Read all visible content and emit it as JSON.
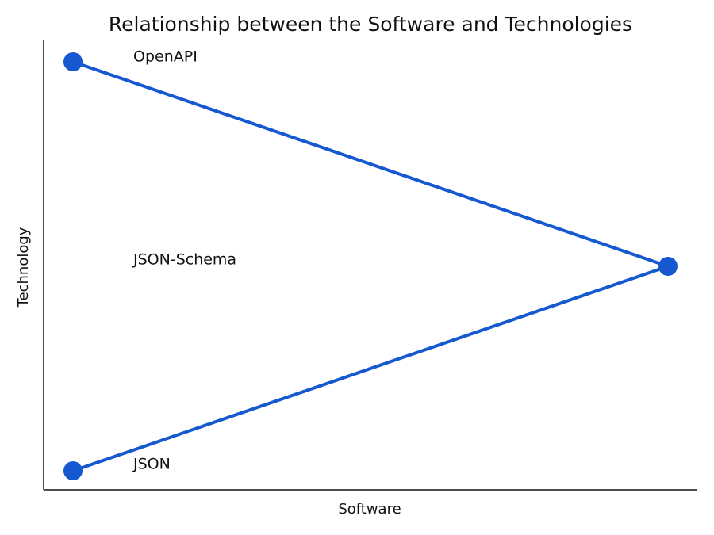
{
  "title": "Relationship between the Software and Technologies",
  "x_axis_label": "Software",
  "y_axis_label": "Technology",
  "nodes": [
    {
      "label": "OpenAPI"
    },
    {
      "label": "JSON-Schema"
    },
    {
      "label": "JSON"
    }
  ]
}
